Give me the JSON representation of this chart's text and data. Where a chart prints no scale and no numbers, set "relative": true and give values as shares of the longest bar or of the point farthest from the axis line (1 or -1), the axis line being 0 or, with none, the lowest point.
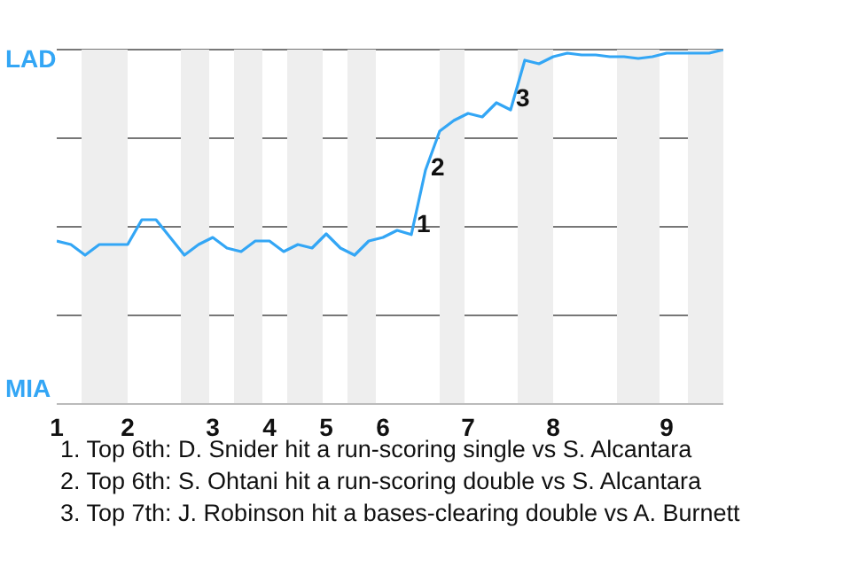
{
  "chart_data": {
    "type": "line",
    "relative": true,
    "categories": [
      "1",
      null,
      null,
      null,
      null,
      "2",
      null,
      null,
      null,
      null,
      null,
      "3",
      null,
      null,
      null,
      "4",
      null,
      null,
      null,
      "5",
      null,
      null,
      null,
      "6",
      null,
      null,
      null,
      null,
      null,
      "7",
      null,
      null,
      null,
      null,
      null,
      "8",
      null,
      null,
      null,
      null,
      null,
      null,
      null,
      "9",
      null,
      null,
      null,
      null
    ],
    "series": [
      {
        "color": "#33a6f5",
        "values": [
          0.46,
          0.45,
          0.42,
          0.45,
          0.45,
          0.45,
          0.52,
          0.52,
          0.47,
          0.42,
          0.45,
          0.47,
          0.44,
          0.43,
          0.46,
          0.46,
          0.43,
          0.45,
          0.44,
          0.48,
          0.44,
          0.42,
          0.46,
          0.47,
          0.49,
          0.478,
          0.66,
          0.77,
          0.8,
          0.82,
          0.81,
          0.85,
          0.83,
          0.97,
          0.96,
          0.98,
          0.99,
          0.985,
          0.985,
          0.98,
          0.98,
          0.975,
          0.98,
          0.99,
          0.99,
          0.99,
          0.99,
          1.0
        ]
      }
    ],
    "marker": "none",
    "line_style": "solid",
    "grid": "y",
    "annotations": [
      "LAD",
      "MIA",
      "1",
      "2",
      "3",
      "1. Top 6th: D. Snider hit a run-scoring single vs S. Alcantara",
      "2. Top 6th: S. Ohtani hit a run-scoring double vs S. Alcantara",
      "3. Top 7th: J. Robinson hit a bases-clearing double vs A. Burnett"
    ]
  }
}
